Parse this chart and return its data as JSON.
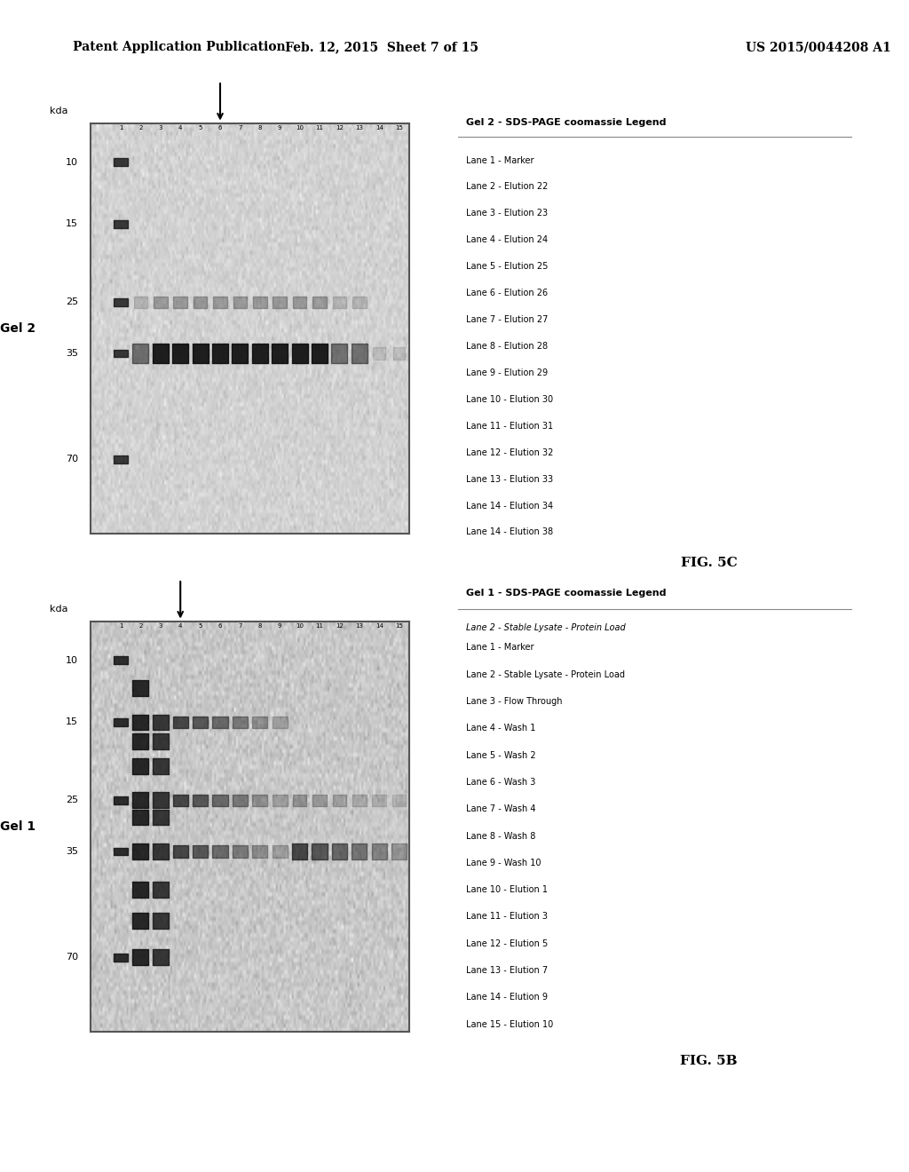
{
  "header_left": "Patent Application Publication",
  "header_center": "Feb. 12, 2015  Sheet 7 of 15",
  "header_right": "US 2015/0044208 A1",
  "fig_label_top": "FIG. 5C",
  "fig_label_bottom": "FIG. 5B",
  "gel2_label": "Gel 2",
  "gel1_label": "Gel 1",
  "gel2_legend_title": "Gel 2 - SDS-PAGE coomassie Legend",
  "gel2_legend_lines": [
    "Lane 1 - Marker",
    "Lane 2 - Elution 22",
    "Lane 3 - Elution 23",
    "Lane 4 - Elution 24",
    "Lane 5 - Elution 25",
    "Lane 6 - Elution 26",
    "Lane 7 - Elution 27",
    "Lane 8 - Elution 28",
    "Lane 9 - Elution 29",
    "Lane 10 - Elution 30",
    "Lane 11 - Elution 31",
    "Lane 12 - Elution 32",
    "Lane 13 - Elution 33",
    "Lane 14 - Elution 34",
    "Lane 14 - Elution 38"
  ],
  "gel1_legend_title": "Gel 1 - SDS-PAGE coomassie Legend",
  "gel1_legend_subtitle": "Lane 2 - Stable Lysate - Protein Load",
  "gel1_legend_lines": [
    "Lane 1 - Marker",
    "Lane 2 - Stable Lysate - Protein Load",
    "Lane 3 - Flow Through",
    "Lane 4 - Wash 1",
    "Lane 5 - Wash 2",
    "Lane 6 - Wash 3",
    "Lane 7 - Wash 4",
    "Lane 8 - Wash 8",
    "Lane 9 - Wash 10",
    "Lane 10 - Elution 1",
    "Lane 11 - Elution 3",
    "Lane 12 - Elution 5",
    "Lane 13 - Elution 7",
    "Lane 14 - Elution 9",
    "Lane 15 - Elution 10"
  ],
  "kda_labels": [
    "70",
    "35",
    "25",
    "15",
    "10"
  ],
  "kda_values": [
    70,
    35,
    25,
    15,
    10
  ],
  "background_color": "#ffffff",
  "text_color": "#000000",
  "gel_border_color": "#555555",
  "band_color": "#1a1a1a"
}
